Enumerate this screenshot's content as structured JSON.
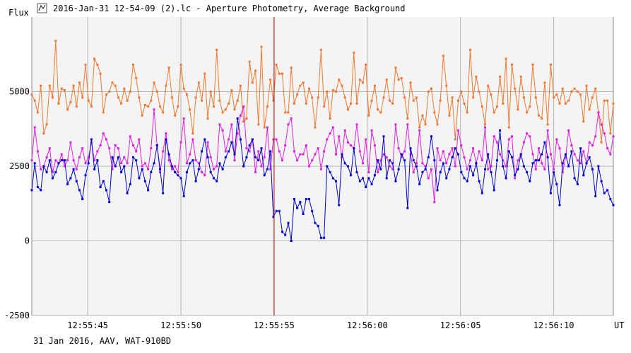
{
  "window": {
    "title": "2016-Jan-31 12-54-09 (2).lc - Aperture Photometry, Average Background",
    "icon": "light-curve-icon"
  },
  "footer": {
    "caption": "31 Jan 2016, AAV, WAT-910BD"
  },
  "colors": {
    "background": "#ffffff",
    "plot_background": "#f4f4f4",
    "grid": "#b4b4b4",
    "cursor": "#b00000",
    "series_orange": "#f07830",
    "series_magenta": "#e020e0",
    "series_blue": "#0000d0"
  },
  "chart_data": {
    "type": "scatter",
    "ylabel": "Flux",
    "xlabel": "UT",
    "ylim": [
      -2500,
      7500
    ],
    "xlim": [
      42.0,
      73.2
    ],
    "y_ticks": [
      {
        "value": -2500,
        "label": "-2500"
      },
      {
        "value": 0,
        "label": "0"
      },
      {
        "value": 2500,
        "label": "2500"
      },
      {
        "value": 5000,
        "label": "5000"
      }
    ],
    "x_ticks": [
      {
        "value": 45,
        "label": "12:55:45"
      },
      {
        "value": 50,
        "label": "12:55:50"
      },
      {
        "value": 55,
        "label": "12:55:55"
      },
      {
        "value": 60,
        "label": "12:56:00"
      },
      {
        "value": 65,
        "label": "12:56:05"
      },
      {
        "value": 70,
        "label": "12:56:10"
      }
    ],
    "cursor_x": 55.0,
    "grid": true,
    "sample_interval": 0.16,
    "series": [
      {
        "color_key": "series_orange",
        "values": [
          4900,
          4700,
          4300,
          5200,
          3600,
          3900,
          5200,
          4800,
          6700,
          4600,
          5100,
          5050,
          4400,
          4650,
          5200,
          4500,
          5300,
          4800,
          5900,
          4700,
          4500,
          6100,
          5900,
          5600,
          4300,
          4900,
          5000,
          5300,
          5200,
          4800,
          4600,
          5100,
          4700,
          5000,
          5900,
          5450,
          4800,
          4200,
          4550,
          4500,
          4700,
          5300,
          5000,
          4500,
          4300,
          5200,
          5800,
          4800,
          4200,
          4500,
          5900,
          5100,
          4900,
          4400,
          3600,
          4800,
          5300,
          4700,
          5600,
          4100,
          5000,
          4500,
          6400,
          4700,
          4300,
          4400,
          4600,
          5050,
          4400,
          4700,
          5200,
          4000,
          4100,
          6000,
          5300,
          5700,
          3900,
          6500,
          3800,
          4500,
          5400,
          4700,
          5900,
          5600,
          5600,
          4300,
          4300,
          5800,
          4600,
          4900,
          5200,
          5300,
          4600,
          5100,
          4800,
          3800,
          4800,
          6400,
          4500,
          5000,
          4100,
          5050,
          5000,
          5400,
          5200,
          4800,
          4400,
          4600,
          6300,
          4600,
          5400,
          5300,
          5900,
          4200,
          4700,
          5200,
          4400,
          4300,
          4800,
          5400,
          4700,
          4600,
          5800,
          5400,
          5450,
          4800,
          4100,
          5300,
          4700,
          4800,
          3800,
          4200,
          3900,
          5000,
          5100,
          4300,
          3900,
          4700,
          6200,
          5200,
          4200,
          4800,
          3400,
          4700,
          5000,
          4600,
          4300,
          6400,
          4800,
          5500,
          5000,
          4500,
          3900,
          5200,
          4900,
          4300,
          4500,
          5500,
          4600,
          6100,
          3800,
          5900,
          5100,
          4400,
          5500,
          4800,
          4300,
          4500,
          5900,
          4800,
          4200,
          4100,
          5300,
          3900,
          5900,
          4800,
          4900,
          4600,
          5100,
          4600,
          4700,
          5000,
          5100,
          5000,
          4900,
          4000,
          5200,
          4400,
          4800,
          5100,
          4300,
          3300,
          4700,
          4700,
          3600,
          4600,
          4400,
          4600,
          4600,
          4400,
          3300,
          4600,
          5100,
          5000,
          4400,
          4700,
          3700,
          4800,
          4500
        ]
      },
      {
        "color_key": "series_magenta",
        "values": [
          2700,
          3800,
          3000,
          2400,
          2500,
          2800,
          3100,
          2300,
          2700,
          2600,
          2900,
          2500,
          2700,
          3300,
          2700,
          2400,
          2800,
          3100,
          2600,
          2800,
          3300,
          2700,
          3000,
          3200,
          3600,
          3400,
          3100,
          2400,
          3200,
          3100,
          2600,
          2800,
          2600,
          3500,
          3200,
          3000,
          3400,
          2500,
          2600,
          2400,
          3100,
          4400,
          3200,
          2300,
          3000,
          3600,
          2700,
          2400,
          2500,
          2300,
          3300,
          4100,
          2600,
          2900,
          3400,
          2700,
          2600,
          2300,
          2200,
          3300,
          2800,
          2400,
          2500,
          3900,
          3700,
          3000,
          3400,
          3900,
          2700,
          3600,
          4200,
          4500,
          3100,
          3000,
          3400,
          2300,
          3000,
          2500,
          2800,
          3800,
          2400,
          3400,
          3400,
          3000,
          2700,
          3200,
          3900,
          4100,
          3000,
          2700,
          2900,
          2900,
          3200,
          2500,
          2700,
          2900,
          3100,
          2400,
          3000,
          3400,
          3600,
          3800,
          2900,
          3500,
          2800,
          3700,
          3300,
          3200,
          3100,
          3900,
          3000,
          2600,
          3400,
          2300,
          3700,
          3200,
          2300,
          2700,
          2900,
          2800,
          2500,
          2400,
          3900,
          3100,
          2800,
          3000,
          3900,
          2900,
          2300,
          2600,
          3700,
          2600,
          2500,
          2100,
          2400,
          1300,
          3100,
          2700,
          3000,
          2600,
          2900,
          3100,
          2500,
          3700,
          3200,
          2800,
          2400,
          2700,
          3100,
          2600,
          3000,
          2700,
          3800,
          2400,
          2500,
          3500,
          3300,
          2900,
          2700,
          2500,
          3400,
          3500,
          2100,
          2700,
          2900,
          3300,
          3600,
          3500,
          2900,
          2400,
          3100,
          2600,
          2400,
          3700,
          2900,
          2400,
          3400,
          3100,
          2300,
          2800,
          3700,
          3200,
          2900,
          2700,
          2600,
          3000,
          2600,
          3300,
          3200,
          3500,
          4300,
          3900,
          3600,
          3100,
          2900,
          3500,
          2700,
          2500,
          3200,
          2900,
          2100,
          2200,
          2600,
          3100,
          3000,
          2000,
          3500,
          2800,
          4600,
          2200,
          2600,
          2400,
          3700,
          4300,
          2800,
          2700,
          4300,
          3900,
          2600,
          3300,
          2500,
          2700,
          2400,
          3000,
          2600
        ]
      },
      {
        "color_key": "series_blue",
        "values": [
          1700,
          2600,
          1800,
          1700,
          2500,
          2300,
          2700,
          2100,
          2300,
          2600,
          2700,
          2700,
          1900,
          2100,
          2400,
          2000,
          1700,
          1400,
          2200,
          2600,
          3400,
          2400,
          2700,
          1800,
          2000,
          1700,
          1300,
          2800,
          2500,
          2800,
          2300,
          2500,
          1600,
          1900,
          2800,
          2700,
          2100,
          2400,
          2000,
          1700,
          2300,
          2600,
          3200,
          2400,
          1600,
          3400,
          2900,
          2500,
          2300,
          2200,
          2100,
          1500,
          2300,
          2600,
          2700,
          2000,
          2400,
          3000,
          3400,
          2800,
          2300,
          2100,
          2000,
          2600,
          2400,
          2800,
          3000,
          3300,
          2900,
          4100,
          3400,
          2500,
          2800,
          3200,
          3400,
          2800,
          2700,
          3100,
          2200,
          2400,
          3000,
          2600,
          2200,
          2600,
          3800,
          2100,
          3100,
          2800,
          2300,
          2500,
          2800,
          3000,
          2400,
          3600,
          2900,
          1600,
          2800,
          2600,
          2700,
          2500,
          2300,
          2100,
          2000,
          1200,
          2900,
          2600,
          2500,
          2200,
          3100,
          2300,
          2000,
          2100,
          1800,
          2100,
          1900,
          2200,
          2700,
          2400,
          3500,
          2100,
          2700,
          2600,
          2000,
          2400,
          2900,
          2700,
          1100,
          3100,
          2700,
          2500,
          1900,
          2300,
          2400,
          2800,
          3500,
          2700,
          1700,
          2300,
          2600,
          2100,
          2400,
          2800,
          3100,
          2900,
          2300,
          2100,
          2000,
          2500,
          2200,
          2600,
          2000,
          1600,
          2400,
          2900,
          2300,
          1700,
          2700,
          3700,
          2500,
          2100,
          3000,
          2800,
          2200,
          2400,
          2900,
          2500,
          2300,
          2000,
          2600,
          2700,
          2700,
          2900,
          3300,
          2800,
          1600,
          2300,
          1900,
          1200,
          2600,
          2900,
          2500,
          3000,
          2100,
          1900,
          3100,
          2200,
          2600,
          2800,
          2400,
          1500,
          2500,
          2000,
          1600,
          1700,
          1400,
          1200,
          1900,
          2500,
          2400,
          2000,
          2700,
          2500,
          2100,
          2600,
          2300,
          2200,
          2800,
          2400,
          2000,
          2300,
          2600,
          3400,
          2100,
          1500,
          2600,
          1800,
          2000,
          2700,
          2000,
          2300,
          2700,
          1800,
          2300,
          2500,
          2100,
          2700,
          1900,
          2800,
          2400,
          2600,
          1500
        ]
      }
    ],
    "dip": {
      "series_index": 2,
      "values": [
        800,
        1000,
        1000,
        300,
        200,
        600,
        0,
        1400,
        1100,
        1300,
        900,
        1400,
        1400,
        1000,
        600,
        500,
        100,
        100
      ]
    }
  }
}
